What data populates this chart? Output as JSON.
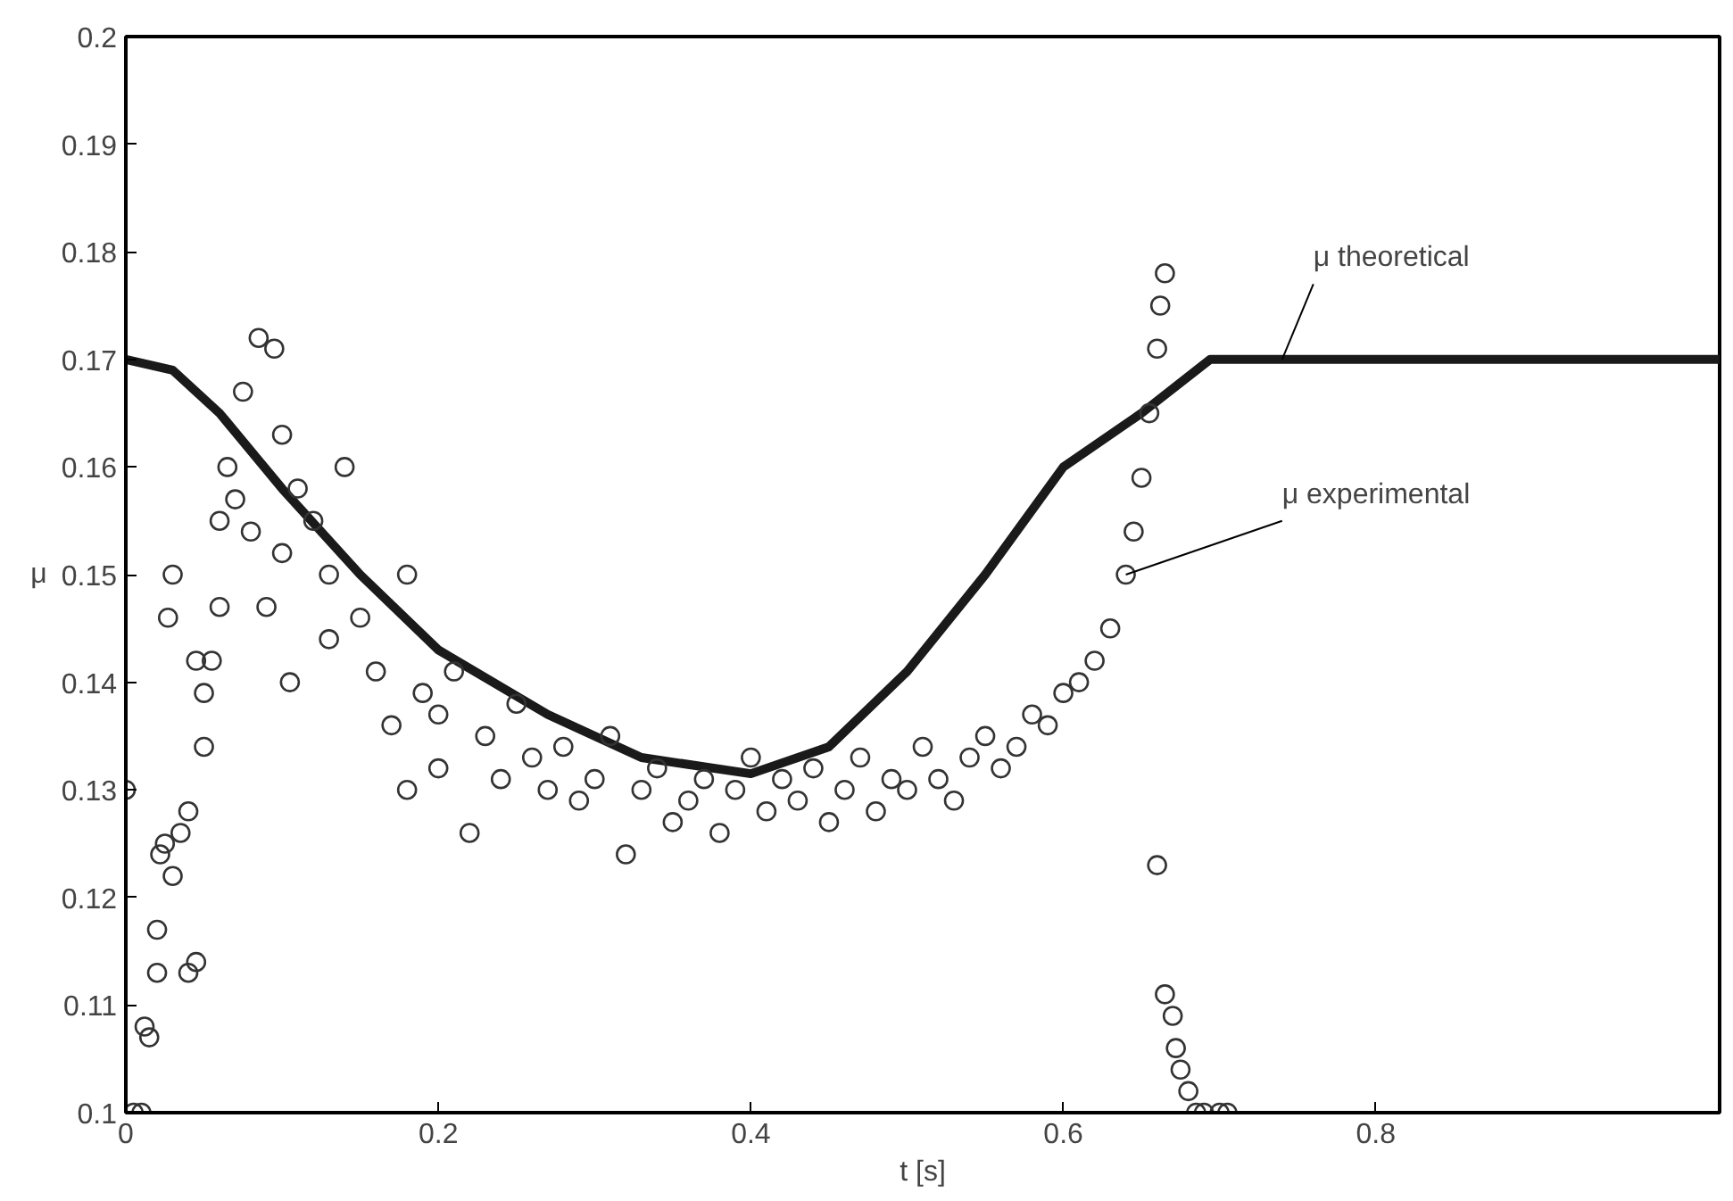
{
  "chart_data": {
    "type": "scatter",
    "xlabel": "t [s]",
    "ylabel": "μ",
    "xlim": [
      0,
      1.02
    ],
    "ylim": [
      0.1,
      0.2
    ],
    "xticks": [
      0,
      0.2,
      0.4,
      0.6,
      0.8
    ],
    "yticks": [
      0.1,
      0.11,
      0.12,
      0.13,
      0.14,
      0.15,
      0.16,
      0.17,
      0.18,
      0.19,
      0.2
    ],
    "grid": false,
    "series": [
      {
        "type": "line",
        "color": "#1a1a1a",
        "marker": "none",
        "line_style": "solid",
        "x": [
          0,
          0.03,
          0.06,
          0.1,
          0.15,
          0.2,
          0.27,
          0.33,
          0.4,
          0.45,
          0.5,
          0.55,
          0.6,
          0.65,
          0.694,
          1.02
        ],
        "values": [
          0.17,
          0.169,
          0.165,
          0.158,
          0.15,
          0.143,
          0.137,
          0.133,
          0.1315,
          0.134,
          0.141,
          0.15,
          0.16,
          0.165,
          0.17,
          0.17
        ]
      },
      {
        "color": "#333333",
        "marker": "circle",
        "x": [
          0,
          0.005,
          0.01,
          0.012,
          0.015,
          0.02,
          0.02,
          0.022,
          0.025,
          0.027,
          0.03,
          0.03,
          0.035,
          0.04,
          0.04,
          0.045,
          0.045,
          0.05,
          0.05,
          0.055,
          0.06,
          0.06,
          0.065,
          0.07,
          0.075,
          0.08,
          0.085,
          0.09,
          0.095,
          0.1,
          0.1,
          0.105,
          0.11,
          0.12,
          0.13,
          0.13,
          0.14,
          0.15,
          0.16,
          0.17,
          0.18,
          0.18,
          0.19,
          0.2,
          0.2,
          0.21,
          0.22,
          0.23,
          0.24,
          0.25,
          0.26,
          0.27,
          0.28,
          0.29,
          0.3,
          0.31,
          0.32,
          0.33,
          0.34,
          0.35,
          0.36,
          0.37,
          0.38,
          0.39,
          0.4,
          0.41,
          0.42,
          0.43,
          0.44,
          0.45,
          0.46,
          0.47,
          0.48,
          0.49,
          0.5,
          0.51,
          0.52,
          0.53,
          0.54,
          0.55,
          0.56,
          0.57,
          0.58,
          0.59,
          0.6,
          0.61,
          0.62,
          0.63,
          0.64,
          0.645,
          0.65,
          0.655,
          0.66,
          0.662,
          0.665,
          0.66,
          0.665,
          0.67,
          0.672,
          0.675,
          0.68,
          0.685,
          0.69,
          0.7,
          0.705
        ],
        "values": [
          0.13,
          0.1,
          0.1,
          0.108,
          0.107,
          0.113,
          0.117,
          0.124,
          0.125,
          0.146,
          0.15,
          0.122,
          0.126,
          0.128,
          0.113,
          0.114,
          0.142,
          0.134,
          0.139,
          0.142,
          0.147,
          0.155,
          0.16,
          0.157,
          0.167,
          0.154,
          0.172,
          0.147,
          0.171,
          0.152,
          0.163,
          0.14,
          0.158,
          0.155,
          0.15,
          0.144,
          0.16,
          0.146,
          0.141,
          0.136,
          0.15,
          0.13,
          0.139,
          0.137,
          0.132,
          0.141,
          0.126,
          0.135,
          0.131,
          0.138,
          0.133,
          0.13,
          0.134,
          0.129,
          0.131,
          0.135,
          0.124,
          0.13,
          0.132,
          0.127,
          0.129,
          0.131,
          0.126,
          0.13,
          0.133,
          0.128,
          0.131,
          0.129,
          0.132,
          0.127,
          0.13,
          0.133,
          0.128,
          0.131,
          0.13,
          0.134,
          0.131,
          0.129,
          0.133,
          0.135,
          0.132,
          0.134,
          0.137,
          0.136,
          0.139,
          0.14,
          0.142,
          0.145,
          0.15,
          0.154,
          0.159,
          0.165,
          0.171,
          0.175,
          0.178,
          0.123,
          0.111,
          0.109,
          0.106,
          0.104,
          0.102,
          0.1,
          0.1,
          0.1,
          0.1
        ]
      }
    ],
    "annotations": [
      {
        "text": "μ theoretical",
        "x": 0.74,
        "y": 0.17
      },
      {
        "text": "μ experimental",
        "x": 0.64,
        "y": 0.15
      }
    ]
  }
}
